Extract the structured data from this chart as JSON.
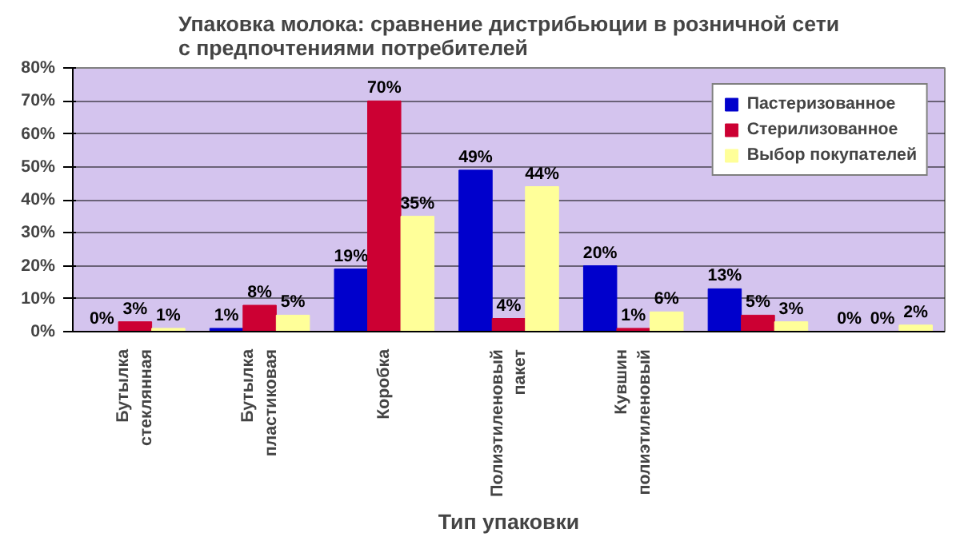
{
  "chart_data": {
    "type": "bar",
    "title": "Упаковка молока: сравнение дистрибьюции в розничной сети\nс предпочтениями потребителей",
    "xlabel": "Тип упаковки",
    "categories": [
      "Бутылка стеклянная",
      "Бутылка пластиковая",
      "Коробка",
      "Полиэтиленовый пакет",
      "Кувшин полиэтиленовый",
      null,
      null
    ],
    "series": [
      {
        "name": "Пастеризованное",
        "color": "#0000cc",
        "values": [
          0,
          1,
          19,
          49,
          20,
          13,
          0
        ],
        "value_labels": [
          "0%",
          "1%",
          "19%",
          "49%",
          "20%",
          "13%",
          "0%"
        ]
      },
      {
        "name": "Стерилизованное",
        "color": "#cc0033",
        "values": [
          3,
          8,
          70,
          4,
          1,
          5,
          0
        ],
        "value_labels": [
          "3%",
          "8%",
          "70%",
          "4%",
          "1%",
          "5%",
          "0%"
        ]
      },
      {
        "name": "Выбор покупателей",
        "color": "#ffff99",
        "values": [
          1,
          5,
          35,
          44,
          6,
          3,
          2
        ],
        "value_labels": [
          "1%",
          "5%",
          "35%",
          "44%",
          "6%",
          "3%",
          "2%"
        ]
      }
    ],
    "ylim": [
      0,
      80
    ],
    "yticks": [
      {
        "value": 0,
        "label": "0%"
      },
      {
        "value": 10,
        "label": "10%"
      },
      {
        "value": 20,
        "label": "20%"
      },
      {
        "value": 30,
        "label": "30%"
      },
      {
        "value": 40,
        "label": "40%"
      },
      {
        "value": 50,
        "label": "50%"
      },
      {
        "value": 60,
        "label": "60%"
      },
      {
        "value": 70,
        "label": "70%"
      },
      {
        "value": 80,
        "label": "80%"
      }
    ],
    "grid": "y",
    "legend": "top right"
  }
}
